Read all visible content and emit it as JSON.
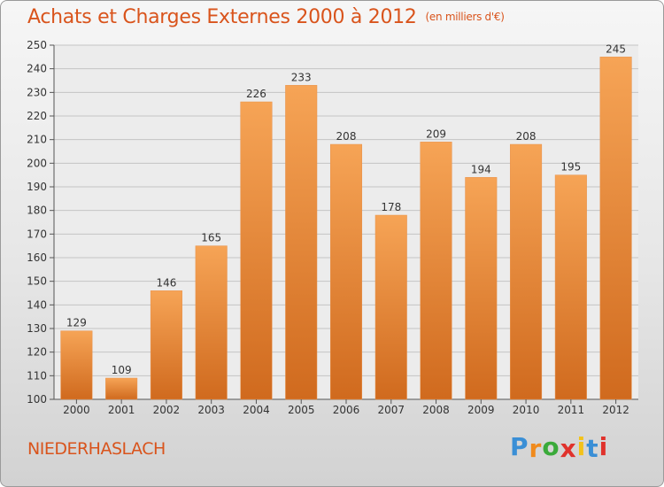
{
  "header": {
    "title": "Achats et Charges Externes 2000 à 2012",
    "unit": "(en milliers d'€)"
  },
  "footer": {
    "commune": "NIEDERHASLACH",
    "logo": [
      "P",
      "r",
      "o",
      "x",
      "i",
      "t",
      "i"
    ]
  },
  "colors": {
    "accent": "#d9541c",
    "bar_light": "#f6a456",
    "bar_dark": "#d06a1e",
    "logo_letters": [
      "#3a8fd6",
      "#f08a1c",
      "#3aaa3a",
      "#e0322c",
      "#f3c21a",
      "#3a8fd6",
      "#e0322c"
    ]
  },
  "chart_data": {
    "type": "bar",
    "title": "Achats et Charges Externes 2000 à 2012",
    "subtitle": "(en milliers d'€)",
    "categories": [
      "2000",
      "2001",
      "2002",
      "2003",
      "2004",
      "2005",
      "2006",
      "2007",
      "2008",
      "2009",
      "2010",
      "2011",
      "2012"
    ],
    "values": [
      129,
      109,
      146,
      165,
      226,
      233,
      208,
      178,
      209,
      194,
      208,
      195,
      245
    ],
    "ylim": [
      100,
      250
    ],
    "yticks": [
      100,
      110,
      120,
      130,
      140,
      150,
      160,
      170,
      180,
      190,
      200,
      210,
      220,
      230,
      240,
      250
    ],
    "grid": true,
    "data_labels": true
  }
}
